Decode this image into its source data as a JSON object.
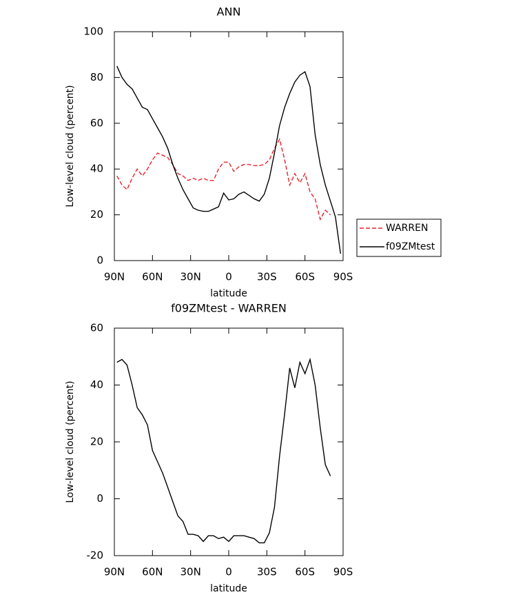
{
  "chart_data": [
    {
      "type": "line",
      "title": "ANN",
      "xlabel": "latitude",
      "ylabel": "Low-level cloud (percent)",
      "x": [
        88,
        84,
        80,
        76,
        72,
        68,
        64,
        60,
        56,
        52,
        48,
        44,
        40,
        36,
        32,
        28,
        24,
        20,
        16,
        12,
        8,
        4,
        0,
        -4,
        -8,
        -12,
        -16,
        -20,
        -24,
        -28,
        -32,
        -36,
        -40,
        -44,
        -48,
        -52,
        -56,
        -60,
        -64,
        -68,
        -72,
        -76,
        -80,
        -84,
        -88
      ],
      "series": [
        {
          "name": "WARREN",
          "color": "#e8202a",
          "linestyle": "dashed",
          "values": [
            37,
            33,
            31,
            36,
            40,
            37,
            40,
            44,
            47,
            46,
            45,
            42,
            38,
            37,
            35,
            36,
            35,
            36,
            35,
            35,
            40,
            43,
            43,
            39,
            41,
            42,
            42,
            41.5,
            41.5,
            42,
            44,
            49,
            53,
            44,
            33,
            38,
            34,
            38,
            30,
            27,
            18,
            22,
            20,
            null,
            null
          ]
        },
        {
          "name": "f09ZMtest",
          "color": "#000000",
          "linestyle": "solid",
          "values": [
            85,
            80,
            77,
            75,
            71,
            67,
            66,
            62,
            58,
            54,
            49,
            42,
            36,
            31,
            27,
            23,
            22,
            21.5,
            21.5,
            22.5,
            23.5,
            29.5,
            26.5,
            27,
            29,
            30,
            28.5,
            27,
            26,
            29,
            36,
            47,
            59,
            67,
            73,
            78,
            81,
            82.5,
            76,
            55,
            42,
            33,
            26,
            19,
            3
          ]
        }
      ],
      "xlim": [
        90,
        -90
      ],
      "xticks": [
        {
          "value": 90,
          "label": "90N"
        },
        {
          "value": 60,
          "label": "60N"
        },
        {
          "value": 30,
          "label": "30N"
        },
        0,
        {
          "value": -30,
          "label": "30S"
        },
        {
          "value": -60,
          "label": "60S"
        },
        {
          "value": -90,
          "label": "90S"
        }
      ],
      "ylim": [
        0,
        100
      ],
      "yticks": [
        0,
        20,
        40,
        60,
        80,
        100
      ],
      "legend": "right"
    },
    {
      "type": "line",
      "title": "f09ZMtest - WARREN",
      "xlabel": "latitude",
      "ylabel": "Low-level cloud (percent)",
      "x": [
        88,
        84,
        80,
        76,
        72,
        68,
        64,
        60,
        56,
        52,
        48,
        44,
        40,
        36,
        32,
        28,
        24,
        20,
        16,
        12,
        8,
        4,
        0,
        -4,
        -8,
        -12,
        -16,
        -20,
        -24,
        -28,
        -32,
        -36,
        -40,
        -44,
        -48,
        -52,
        -56,
        -60,
        -64,
        -68,
        -72,
        -76,
        -80,
        -84,
        -88
      ],
      "color": "#000000",
      "linestyle": "solid",
      "values": [
        48,
        49,
        47,
        40,
        32,
        29.5,
        26,
        17,
        13,
        9,
        4,
        -1,
        -6,
        -8,
        -12.5,
        -12.5,
        -13,
        -15,
        -13,
        -13,
        -14,
        -13.5,
        -15,
        -13,
        -13,
        -13,
        -13.5,
        -14,
        -15.5,
        -15.5,
        -12,
        -3,
        15,
        30,
        46,
        39,
        48,
        44,
        49,
        40,
        25,
        12,
        8,
        null,
        null
      ],
      "xlim": [
        90,
        -90
      ],
      "xticks": [
        {
          "value": 90,
          "label": "90N"
        },
        {
          "value": 60,
          "label": "60N"
        },
        {
          "value": 30,
          "label": "30N"
        },
        0,
        {
          "value": -30,
          "label": "30S"
        },
        {
          "value": -60,
          "label": "60S"
        },
        {
          "value": -90,
          "label": "90S"
        }
      ],
      "ylim": [
        -20,
        60
      ],
      "yticks": [
        -20,
        0,
        20,
        40,
        60
      ]
    }
  ]
}
